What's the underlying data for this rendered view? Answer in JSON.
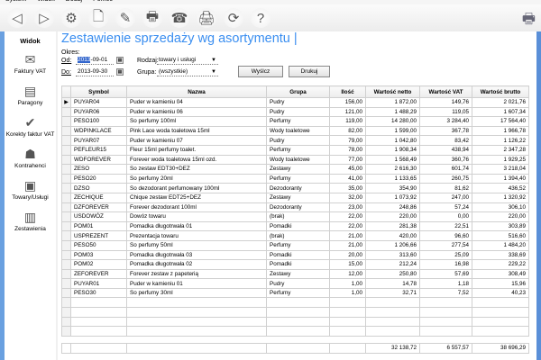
{
  "menu": [
    "System",
    "Widok",
    "Dodaj",
    "Pomoc"
  ],
  "toolbar": [
    "back-icon",
    "forward-icon",
    "settings-icon",
    "new-document-icon",
    "edit-icon",
    "print-icon",
    "fax-icon",
    "printer-icon",
    "refresh-icon",
    "help-icon"
  ],
  "sidebar": {
    "header": "Widok",
    "items": [
      {
        "label": "Faktury VAT",
        "icon": "✉"
      },
      {
        "label": "Paragony",
        "icon": "▤"
      },
      {
        "label": "Korekty faktur VAT",
        "icon": "✔"
      },
      {
        "label": "Kontrahenci",
        "icon": "☗"
      },
      {
        "label": "Towary/Usługi",
        "icon": "▣"
      },
      {
        "label": "Zestawienia",
        "icon": "▥"
      }
    ]
  },
  "page": {
    "title": "Zestawienie sprzedaży wg asortymentu |",
    "period_label": "Okres:",
    "from_label": "Od:",
    "from_value": "2013-09-01",
    "to_label": "Do:",
    "to_value": "2013-09-30",
    "type_label": "Rodzaj:",
    "type_value": "towary i usługi",
    "group_label": "Grupa:",
    "group_value": "(wszystkie)",
    "clear_button": "Wyślcz",
    "print_button": "Drukuj"
  },
  "table": {
    "columns": [
      "Symbol",
      "Nazwa",
      "Grupa",
      "Ilość",
      "Wartość netto",
      "Wartość VAT",
      "Wartość brutto"
    ],
    "rows": [
      [
        "PUYAR04",
        "Puder w kamieniu 04",
        "Pudry",
        "156,00",
        "1 872,00",
        "149,76",
        "2 021,76"
      ],
      [
        "PUYAR06",
        "Puder w kamieniu 06",
        "Pudry",
        "121,00",
        "1 488,29",
        "119,05",
        "1 607,34"
      ],
      [
        "PESO100",
        "So perfumy 100ml",
        "Perfumy",
        "119,00",
        "14 280,00",
        "3 284,40",
        "17 564,40"
      ],
      [
        "WDPINKLACE",
        "Pink Lace woda toaletowa 15ml",
        "Wody toaletowe",
        "82,00",
        "1 599,00",
        "367,78",
        "1 966,78"
      ],
      [
        "PUYAR07",
        "Puder w kamieniu 07",
        "Pudry",
        "79,00",
        "1 042,80",
        "83,42",
        "1 126,22"
      ],
      [
        "PEFLEUR15",
        "Fleur 15ml perfumy toalet.",
        "Perfumy",
        "78,00",
        "1 908,34",
        "438,94",
        "2 347,28"
      ],
      [
        "WDFOREVER",
        "Forever woda toaletowa 15ml ozd.",
        "Wody toaletowe",
        "77,00",
        "1 568,49",
        "360,76",
        "1 929,25"
      ],
      [
        "ZESO",
        "So zestaw EDT30+DEZ",
        "Zestawy",
        "45,00",
        "2 616,30",
        "601,74",
        "3 218,04"
      ],
      [
        "PESO20",
        "So perfumy 20ml",
        "Perfumy",
        "41,00",
        "1 133,65",
        "260,75",
        "1 394,40"
      ],
      [
        "DZSO",
        "So dezodorant perfumowany 100ml",
        "Dezodoranty",
        "35,00",
        "354,90",
        "81,62",
        "436,52"
      ],
      [
        "ZECHIQUE",
        "Chique zestaw EDT25+DEZ",
        "Zestawy",
        "32,00",
        "1 073,92",
        "247,00",
        "1 320,92"
      ],
      [
        "DZFOREVER",
        "Forever dezodorant 100ml",
        "Dezodoranty",
        "23,00",
        "248,86",
        "57,24",
        "306,10"
      ],
      [
        "USDOWÓZ",
        "Dowóz towaru",
        "(brak)",
        "22,00",
        "220,00",
        "0,00",
        "220,00"
      ],
      [
        "POM01",
        "Pomadka długotrwała 01",
        "Pomadki",
        "22,00",
        "281,38",
        "22,51",
        "303,89"
      ],
      [
        "USPREZENT",
        "Prezentacja towaru",
        "(brak)",
        "21,00",
        "420,00",
        "96,60",
        "516,60"
      ],
      [
        "PESO50",
        "So perfumy 50ml",
        "Perfumy",
        "21,00",
        "1 206,66",
        "277,54",
        "1 484,20"
      ],
      [
        "POM03",
        "Pomadka długotrwała 03",
        "Pomadki",
        "20,00",
        "313,60",
        "25,09",
        "338,69"
      ],
      [
        "POM02",
        "Pomadka długotrwała 02",
        "Pomadki",
        "15,00",
        "212,24",
        "16,98",
        "229,22"
      ],
      [
        "ZEFOREVER",
        "Forever zestaw z papeterią",
        "Zestawy",
        "12,00",
        "250,80",
        "57,69",
        "308,49"
      ],
      [
        "PUYAR01",
        "Puder w kamieniu 01",
        "Pudry",
        "1,00",
        "14,78",
        "1,18",
        "15,96"
      ],
      [
        "PESO30",
        "So perfumy 30ml",
        "Perfumy",
        "1,00",
        "32,71",
        "7,52",
        "40,23"
      ]
    ],
    "totals": {
      "netto": "32 138,72",
      "vat": "6 557,57",
      "brutto": "38 696,29"
    }
  }
}
